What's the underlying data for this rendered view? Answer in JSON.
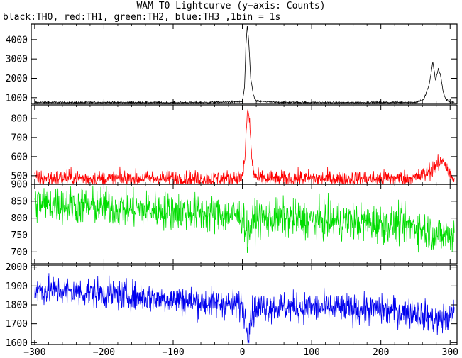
{
  "title": "WAM T0 Lightcurve (y−axis: Counts)",
  "subtitle": "black:TH0, red:TH1, green:TH2, blue:TH3 ,1bin = 1s",
  "chart_data": [
    {
      "type": "line",
      "panel": "TH0",
      "color": "#000000",
      "xlim": [
        -305,
        310
      ],
      "ylim": [
        700,
        4800
      ],
      "yticks": [
        1000,
        2000,
        3000,
        4000
      ],
      "ytick_labels": [
        "1000",
        "2000",
        "3000",
        "4000"
      ],
      "baseline": 750,
      "noise": 25,
      "features": [
        {
          "type": "spike",
          "center": 7,
          "start": 2,
          "end": 16,
          "peak": 4700
        },
        {
          "type": "bump",
          "start": 258,
          "end": 292,
          "peak": 2900
        },
        {
          "type": "bump",
          "start": 282,
          "end": 296,
          "peak": 2500
        }
      ],
      "x": [
        -300,
        -250,
        -200,
        -150,
        -100,
        -50,
        0,
        3,
        5,
        7,
        9,
        12,
        16,
        20,
        50,
        100,
        150,
        200,
        250,
        262,
        270,
        275,
        279,
        283,
        286,
        290,
        294,
        300,
        306
      ],
      "y": [
        760,
        750,
        755,
        750,
        745,
        750,
        790,
        1500,
        3600,
        4700,
        4000,
        2000,
        1100,
        820,
        760,
        750,
        745,
        755,
        760,
        900,
        1700,
        2850,
        1900,
        2500,
        2200,
        1300,
        900,
        780,
        760
      ]
    },
    {
      "type": "line",
      "panel": "TH1",
      "color": "#ff0000",
      "xlim": [
        -305,
        310
      ],
      "ylim": [
        455,
        870
      ],
      "yticks": [
        500,
        600,
        700,
        800
      ],
      "ytick_labels": [
        "500",
        "600",
        "700",
        "800"
      ],
      "baseline": 485,
      "noise": 22,
      "x": [
        -300,
        -250,
        -200,
        -150,
        -100,
        -50,
        0,
        3,
        6,
        8,
        10,
        13,
        16,
        20,
        50,
        100,
        150,
        200,
        250,
        265,
        275,
        285,
        290,
        300,
        306
      ],
      "y": [
        485,
        490,
        482,
        488,
        485,
        482,
        490,
        560,
        760,
        850,
        800,
        620,
        520,
        490,
        482,
        485,
        482,
        485,
        488,
        510,
        540,
        560,
        590,
        500,
        480
      ]
    },
    {
      "type": "line",
      "panel": "TH2",
      "color": "#00dd00",
      "xlim": [
        -305,
        310
      ],
      "ylim": [
        665,
        900
      ],
      "yticks": [
        700,
        750,
        800,
        850,
        900
      ],
      "ytick_labels": [
        "700",
        "750",
        "800",
        "850",
        "900"
      ],
      "noise": 28,
      "x": [
        -300,
        -250,
        -200,
        -150,
        -100,
        -50,
        0,
        5,
        8,
        12,
        20,
        50,
        100,
        150,
        200,
        250,
        280,
        300,
        306
      ],
      "y": [
        845,
        838,
        835,
        826,
        822,
        812,
        808,
        770,
        740,
        780,
        800,
        800,
        795,
        790,
        785,
        775,
        752,
        748,
        760
      ]
    },
    {
      "type": "line",
      "panel": "TH3",
      "color": "#0000ee",
      "xlim": [
        -305,
        310
      ],
      "ylim": [
        1590,
        2010
      ],
      "yticks": [
        1600,
        1700,
        1800,
        1900,
        2000
      ],
      "ytick_labels": [
        "1600",
        "1700",
        "1800",
        "1900",
        "2000"
      ],
      "xticks": [
        -300,
        -200,
        -100,
        0,
        100,
        200,
        300
      ],
      "xtick_labels": [
        "−300",
        "−200",
        "−100",
        "0",
        "100",
        "200",
        "300"
      ],
      "noise": 40,
      "x": [
        -300,
        -250,
        -200,
        -150,
        -100,
        -50,
        0,
        5,
        8,
        12,
        20,
        50,
        100,
        150,
        200,
        250,
        280,
        300,
        306
      ],
      "y": [
        1880,
        1870,
        1860,
        1845,
        1830,
        1810,
        1800,
        1720,
        1650,
        1740,
        1790,
        1790,
        1785,
        1780,
        1770,
        1760,
        1720,
        1730,
        1760
      ]
    }
  ]
}
